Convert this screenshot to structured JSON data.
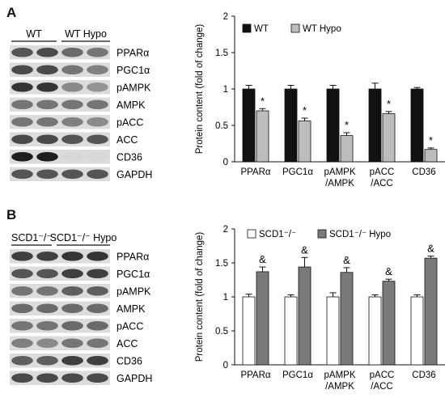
{
  "figure": {
    "panelA": {
      "letter": "A",
      "blot": {
        "groups": [
          "WT",
          "WT Hypo"
        ],
        "bands": [
          {
            "label": "PPARα",
            "intensity": [
              0.7,
              0.75,
              0.6,
              0.55
            ]
          },
          {
            "label": "PGC1α",
            "intensity": [
              0.75,
              0.75,
              0.55,
              0.5
            ]
          },
          {
            "label": "pAMPK",
            "intensity": [
              0.85,
              0.85,
              0.45,
              0.4
            ]
          },
          {
            "label": "AMPK",
            "intensity": [
              0.55,
              0.55,
              0.55,
              0.55
            ]
          },
          {
            "label": "pACC",
            "intensity": [
              0.55,
              0.55,
              0.5,
              0.45
            ]
          },
          {
            "label": "ACC",
            "intensity": [
              0.75,
              0.75,
              0.7,
              0.7
            ]
          },
          {
            "label": "CD36",
            "intensity": [
              0.95,
              0.95,
              0.1,
              0.1
            ]
          },
          {
            "label": "GAPDH",
            "intensity": [
              0.7,
              0.7,
              0.7,
              0.7
            ]
          }
        ]
      }
    },
    "panelB": {
      "letter": "B",
      "blot": {
        "groups": [
          "SCD1⁻/⁻",
          "SCD1⁻/⁻ Hypo"
        ],
        "bands": [
          {
            "label": "PPARα",
            "intensity": [
              0.8,
              0.8,
              0.85,
              0.85
            ]
          },
          {
            "label": "PGC1α",
            "intensity": [
              0.7,
              0.7,
              0.8,
              0.8
            ]
          },
          {
            "label": "pAMPK",
            "intensity": [
              0.55,
              0.55,
              0.65,
              0.65
            ]
          },
          {
            "label": "AMPK",
            "intensity": [
              0.6,
              0.6,
              0.6,
              0.6
            ]
          },
          {
            "label": "pACC",
            "intensity": [
              0.55,
              0.55,
              0.6,
              0.6
            ]
          },
          {
            "label": "ACC",
            "intensity": [
              0.5,
              0.45,
              0.55,
              0.55
            ]
          },
          {
            "label": "CD36",
            "intensity": [
              0.65,
              0.65,
              0.8,
              0.8
            ]
          },
          {
            "label": "GAPDH",
            "intensity": [
              0.75,
              0.75,
              0.75,
              0.75
            ]
          }
        ]
      }
    }
  },
  "colors": {
    "wt": "#111111",
    "wt_hypo": "#bdbdbd",
    "scd1": "#ffffff",
    "scd1_hypo": "#7a7a7a",
    "axis": "#111111"
  },
  "chart_data": [
    {
      "type": "bar",
      "title": "",
      "ylabel": "Protein content (fold of change)",
      "ylim": [
        0,
        2
      ],
      "yticks": [
        "0",
        "0.5",
        "1",
        "1.5",
        "2"
      ],
      "categories": [
        "PPARα",
        "PGC1α",
        "pAMPK\n/AMPK",
        "pACC\n/ACC",
        "CD36"
      ],
      "legend_position": "top-left",
      "series": [
        {
          "name": "WT",
          "values": [
            1.0,
            1.0,
            1.0,
            1.0,
            1.0
          ],
          "errors": [
            0.05,
            0.05,
            0.05,
            0.08,
            0.02
          ]
        },
        {
          "name": "WT Hypo",
          "values": [
            0.7,
            0.56,
            0.36,
            0.66,
            0.17
          ],
          "errors": [
            0.03,
            0.04,
            0.04,
            0.03,
            0.02
          ]
        }
      ],
      "annotations": [
        "*",
        "*",
        "*",
        "*",
        "*"
      ]
    },
    {
      "type": "bar",
      "title": "",
      "ylabel": "Protein content (fold of change)",
      "ylim": [
        0,
        2
      ],
      "yticks": [
        "0",
        "0.5",
        "1",
        "1.5",
        "2"
      ],
      "categories": [
        "PPARα",
        "PGC1α",
        "pAMPK\n/AMPK",
        "pACC\n/ACC",
        "CD36"
      ],
      "legend_position": "top-left",
      "series": [
        {
          "name": "SCD1⁻/⁻",
          "values": [
            1.0,
            1.0,
            1.0,
            1.0,
            1.0
          ],
          "errors": [
            0.04,
            0.03,
            0.06,
            0.03,
            0.03
          ]
        },
        {
          "name": "SCD1⁻/⁻ Hypo",
          "values": [
            1.37,
            1.44,
            1.36,
            1.23,
            1.57
          ],
          "errors": [
            0.07,
            0.14,
            0.07,
            0.03,
            0.03
          ]
        }
      ],
      "annotations": [
        "&",
        "&",
        "&",
        "&",
        "&"
      ]
    }
  ]
}
